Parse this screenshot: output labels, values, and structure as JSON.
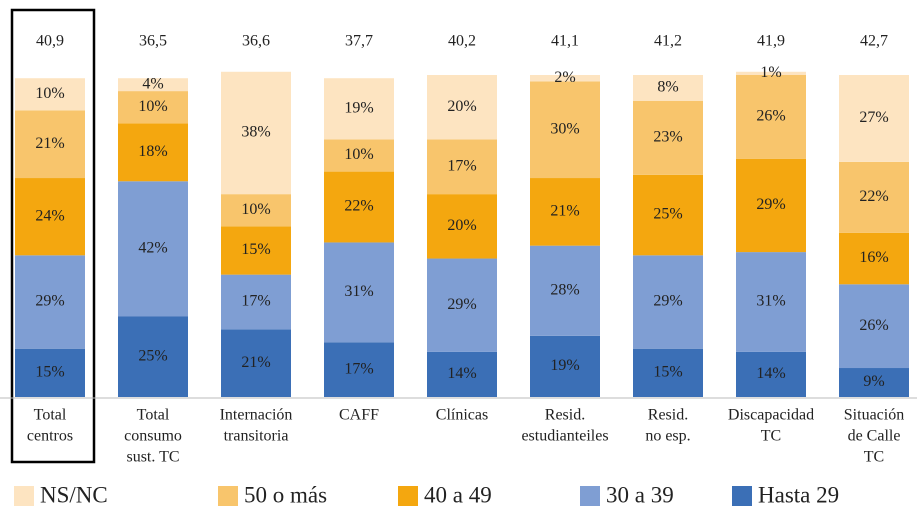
{
  "chart_data": {
    "type": "stacked_bar",
    "categories": [
      [
        "Total",
        "centros"
      ],
      [
        "Total",
        "consumo",
        "sust. TC"
      ],
      [
        "Internación",
        "transitoria"
      ],
      [
        "CAFF"
      ],
      [
        "Clínicas"
      ],
      [
        "Resid.",
        "estudianteiles"
      ],
      [
        "Resid.",
        "no esp."
      ],
      [
        "Discapacidad",
        "TC"
      ],
      [
        "Situación",
        "de Calle",
        "TC"
      ]
    ],
    "averages": {
      "values": [
        40.9,
        36.5,
        36.6,
        37.7,
        40.2,
        41.1,
        41.2,
        41.9,
        42.7
      ],
      "value_labels": [
        "40,9",
        "36,5",
        "36,6",
        "37,7",
        "40,2",
        "41,1",
        "41,2",
        "41,9",
        "42,7"
      ]
    },
    "ylim": [
      0,
      100
    ],
    "series": [
      {
        "name": "Hasta 29",
        "color": "#3b6fb6",
        "label_color": "#ffffff",
        "values": [
          15,
          25,
          21,
          17,
          14,
          19,
          15,
          14,
          9
        ],
        "value_labels": [
          "15%",
          "25%",
          "21%",
          "17%",
          "14%",
          "19%",
          "15%",
          "14%",
          "9%"
        ]
      },
      {
        "name": "30 a 39",
        "color": "#7f9ed3",
        "label_color": "#222222",
        "values": [
          29,
          42,
          17,
          31,
          29,
          28,
          29,
          31,
          26
        ],
        "value_labels": [
          "29%",
          "42%",
          "17%",
          "31%",
          "29%",
          "28%",
          "29%",
          "31%",
          "26%"
        ]
      },
      {
        "name": "40 a 49",
        "color": "#f4a70f",
        "label_color": "#222222",
        "values": [
          24,
          18,
          15,
          22,
          20,
          21,
          25,
          29,
          16
        ],
        "value_labels": [
          "24%",
          "18%",
          "15%",
          "22%",
          "20%",
          "21%",
          "25%",
          "29%",
          "16%"
        ]
      },
      {
        "name": "50 o más",
        "color": "#f8c56c",
        "label_color": "#222222",
        "values": [
          21,
          10,
          10,
          10,
          17,
          30,
          23,
          26,
          22
        ],
        "value_labels": [
          "21%",
          "10%",
          "10%",
          "10%",
          "17%",
          "30%",
          "23%",
          "26%",
          "22%"
        ]
      },
      {
        "name": "NS/NC",
        "color": "#fde4c1",
        "label_color": "#222222",
        "values": [
          10,
          4,
          38,
          19,
          20,
          2,
          8,
          1,
          27
        ],
        "value_labels": [
          "10%",
          "4%",
          "38%",
          "19%",
          "20%",
          "2%",
          "8%",
          "1%",
          "27%"
        ]
      }
    ]
  }
}
